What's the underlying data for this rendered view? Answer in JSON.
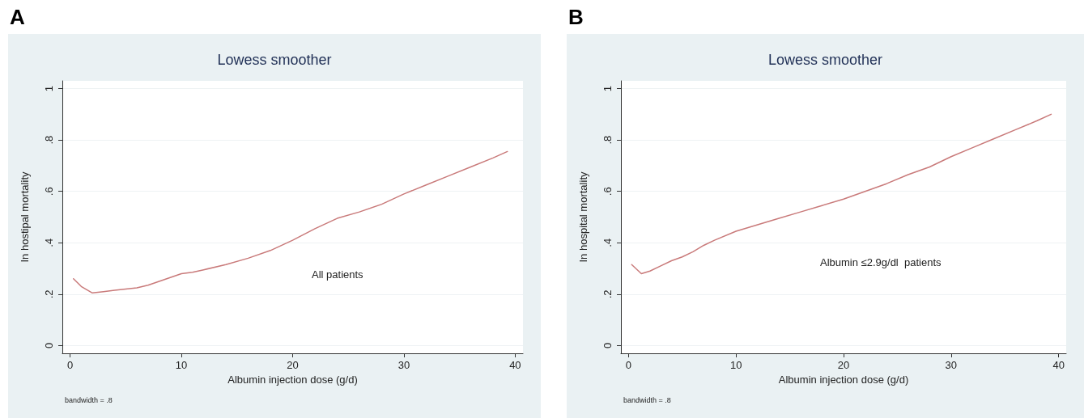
{
  "chart_data": [
    {
      "type": "line",
      "title": "Lowess smoother",
      "xlabel": "Albumin injection dose (g/d)",
      "ylabel": "In hostipal mortality",
      "annotations": [
        "A",
        "All patients",
        "bandwidth = .8"
      ],
      "x": [
        0.3,
        1,
        2,
        3,
        4,
        5,
        6,
        7,
        8,
        9,
        10,
        11,
        12,
        14,
        16,
        18,
        20,
        22,
        24,
        26,
        28,
        30,
        32,
        34,
        36,
        38,
        39.3
      ],
      "series": [
        {
          "color": "#c97a7a",
          "values": [
            0.26,
            0.23,
            0.205,
            0.21,
            0.215,
            0.22,
            0.225,
            0.235,
            0.25,
            0.265,
            0.28,
            0.285,
            0.295,
            0.315,
            0.34,
            0.37,
            0.41,
            0.455,
            0.495,
            0.52,
            0.55,
            0.59,
            0.625,
            0.66,
            0.695,
            0.73,
            0.755
          ]
        }
      ],
      "xlim": [
        -0.7,
        40.7
      ],
      "xticks": [
        {
          "value": 0,
          "label": "0"
        },
        10,
        20,
        30,
        40
      ],
      "ylim": [
        -0.03,
        1.03
      ],
      "yticks": [
        {
          "value": 0,
          "label": "0"
        },
        {
          "value": 0.2,
          "label": ".2"
        },
        {
          "value": 0.4,
          "label": ".4"
        },
        {
          "value": 0.6,
          "label": ".6"
        },
        {
          "value": 0.8,
          "label": ".8"
        },
        1
      ],
      "grid": "y",
      "marker": "none",
      "line_style": "solid"
    },
    {
      "type": "line",
      "title": "Lowess smoother",
      "xlabel": "Albumin injection dose (g/d)",
      "ylabel": "In hospital mortality",
      "annotations": [
        "B",
        "Albumin ≤2.9g/dl  patients",
        "bandwidth = .8"
      ],
      "x": [
        0.3,
        1.2,
        2,
        3,
        4,
        5,
        6,
        7,
        8,
        10,
        12,
        14,
        16,
        18,
        20,
        22,
        24,
        26,
        28,
        30,
        32,
        34,
        36,
        38,
        39.3
      ],
      "series": [
        {
          "color": "#c97a7a",
          "values": [
            0.315,
            0.28,
            0.29,
            0.31,
            0.33,
            0.345,
            0.365,
            0.39,
            0.41,
            0.445,
            0.47,
            0.495,
            0.52,
            0.545,
            0.57,
            0.6,
            0.63,
            0.665,
            0.695,
            0.735,
            0.77,
            0.805,
            0.84,
            0.875,
            0.9
          ]
        }
      ],
      "xlim": [
        -0.7,
        40.7
      ],
      "xticks": [
        {
          "value": 0,
          "label": "0"
        },
        10,
        20,
        30,
        40
      ],
      "ylim": [
        -0.03,
        1.03
      ],
      "yticks": [
        {
          "value": 0,
          "label": "0"
        },
        {
          "value": 0.2,
          "label": ".2"
        },
        {
          "value": 0.4,
          "label": ".4"
        },
        {
          "value": 0.6,
          "label": ".6"
        },
        {
          "value": 0.8,
          "label": ".8"
        },
        1
      ],
      "grid": "y",
      "marker": "none",
      "line_style": "solid"
    }
  ]
}
